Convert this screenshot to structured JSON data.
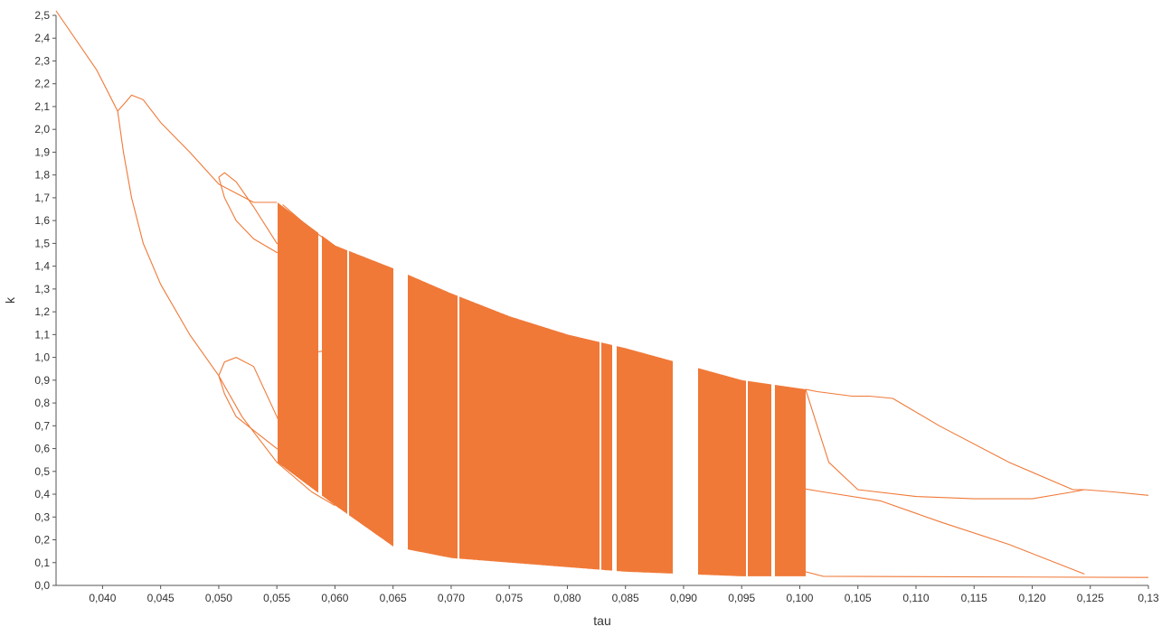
{
  "chart_data": {
    "type": "scatter",
    "xlabel": "tau",
    "ylabel": "k",
    "xlim": [
      0.036,
      0.13
    ],
    "ylim": [
      0.0,
      2.5
    ],
    "grid": false,
    "legend": "none",
    "series_color": "#f07938",
    "x_ticks": [
      {
        "value": 0.04,
        "label": "0,040"
      },
      {
        "value": 0.045,
        "label": "0,045"
      },
      {
        "value": 0.05,
        "label": "0,050"
      },
      {
        "value": 0.055,
        "label": "0,055"
      },
      {
        "value": 0.06,
        "label": "0,060"
      },
      {
        "value": 0.065,
        "label": "0,065"
      },
      {
        "value": 0.07,
        "label": "0,070"
      },
      {
        "value": 0.075,
        "label": "0,075"
      },
      {
        "value": 0.08,
        "label": "0,080"
      },
      {
        "value": 0.085,
        "label": "0,085"
      },
      {
        "value": 0.09,
        "label": "0,090"
      },
      {
        "value": 0.095,
        "label": "0,095"
      },
      {
        "value": 0.1,
        "label": "0,100"
      },
      {
        "value": 0.105,
        "label": "0,105"
      },
      {
        "value": 0.11,
        "label": "0,110"
      },
      {
        "value": 0.115,
        "label": "0,115"
      },
      {
        "value": 0.12,
        "label": "0,120"
      },
      {
        "value": 0.125,
        "label": "0,125"
      },
      {
        "value": 0.13,
        "label": "0,13"
      }
    ],
    "y_ticks": [
      {
        "value": 0.0,
        "label": "0,0"
      },
      {
        "value": 0.1,
        "label": "0,1"
      },
      {
        "value": 0.2,
        "label": "0,2"
      },
      {
        "value": 0.3,
        "label": "0,3"
      },
      {
        "value": 0.4,
        "label": "0,4"
      },
      {
        "value": 0.5,
        "label": "0,5"
      },
      {
        "value": 0.6,
        "label": "0,6"
      },
      {
        "value": 0.7,
        "label": "0,7"
      },
      {
        "value": 0.8,
        "label": "0,8"
      },
      {
        "value": 0.9,
        "label": "0,9"
      },
      {
        "value": 1.0,
        "label": "1,0"
      },
      {
        "value": 1.1,
        "label": "1,1"
      },
      {
        "value": 1.2,
        "label": "1,2"
      },
      {
        "value": 1.3,
        "label": "1,3"
      },
      {
        "value": 1.4,
        "label": "1,4"
      },
      {
        "value": 1.5,
        "label": "1,5"
      },
      {
        "value": 1.6,
        "label": "1,6"
      },
      {
        "value": 1.7,
        "label": "1,7"
      },
      {
        "value": 1.8,
        "label": "1,8"
      },
      {
        "value": 1.9,
        "label": "1,9"
      },
      {
        "value": 2.0,
        "label": "2,0"
      },
      {
        "value": 2.1,
        "label": "2,1"
      },
      {
        "value": 2.2,
        "label": "2,2"
      },
      {
        "value": 2.3,
        "label": "2,3"
      },
      {
        "value": 2.4,
        "label": "2,4"
      },
      {
        "value": 2.5,
        "label": "2,5"
      }
    ],
    "curves": [
      {
        "name": "",
        "points": [
          [
            0.036,
            2.52
          ],
          [
            0.0395,
            2.26
          ],
          [
            0.0413,
            2.08
          ],
          [
            0.042,
            2.12
          ],
          [
            0.0425,
            2.15
          ],
          [
            0.0435,
            2.13
          ],
          [
            0.045,
            2.03
          ],
          [
            0.0475,
            1.9
          ],
          [
            0.05,
            1.76
          ],
          [
            0.053,
            1.68
          ],
          [
            0.055,
            1.68
          ]
        ]
      },
      {
        "name": "",
        "points": [
          [
            0.0413,
            2.08
          ],
          [
            0.0418,
            1.9
          ],
          [
            0.0425,
            1.7
          ],
          [
            0.0435,
            1.5
          ],
          [
            0.045,
            1.32
          ],
          [
            0.0475,
            1.1
          ],
          [
            0.05,
            0.92
          ]
        ]
      },
      {
        "name": "",
        "points": [
          [
            0.05,
            0.92
          ],
          [
            0.052,
            0.74
          ],
          [
            0.055,
            0.54
          ],
          [
            0.058,
            0.41
          ],
          [
            0.06,
            0.35
          ]
        ]
      },
      {
        "name": "",
        "points": [
          [
            0.05,
            1.79
          ],
          [
            0.0505,
            1.81
          ],
          [
            0.0515,
            1.77
          ],
          [
            0.053,
            1.66
          ],
          [
            0.055,
            1.5
          ],
          [
            0.0565,
            1.46
          ]
        ]
      },
      {
        "name": "",
        "points": [
          [
            0.05,
            1.79
          ],
          [
            0.0505,
            1.7
          ],
          [
            0.0515,
            1.6
          ],
          [
            0.053,
            1.52
          ],
          [
            0.055,
            1.46
          ],
          [
            0.0565,
            1.46
          ]
        ]
      },
      {
        "name": "",
        "points": [
          [
            0.05,
            0.92
          ],
          [
            0.0505,
            0.98
          ],
          [
            0.0515,
            1.0
          ],
          [
            0.053,
            0.96
          ],
          [
            0.055,
            0.74
          ],
          [
            0.0565,
            0.58
          ]
        ]
      },
      {
        "name": "",
        "points": [
          [
            0.05,
            0.92
          ],
          [
            0.0505,
            0.84
          ],
          [
            0.0515,
            0.74
          ],
          [
            0.053,
            0.68
          ],
          [
            0.055,
            0.6
          ],
          [
            0.0565,
            0.57
          ]
        ]
      },
      {
        "name": "",
        "points": [
          [
            0.0555,
            1.0
          ],
          [
            0.058,
            1.02
          ],
          [
            0.0605,
            1.04
          ]
        ]
      },
      {
        "name": "",
        "points": [
          [
            0.0555,
            1.67
          ],
          [
            0.058,
            1.56
          ],
          [
            0.0605,
            1.47
          ]
        ]
      },
      {
        "name": "",
        "points": [
          [
            0.1005,
            0.86
          ],
          [
            0.1015,
            0.85
          ],
          [
            0.1045,
            0.83
          ],
          [
            0.106,
            0.83
          ],
          [
            0.108,
            0.82
          ],
          [
            0.112,
            0.7
          ],
          [
            0.118,
            0.54
          ],
          [
            0.1235,
            0.42
          ],
          [
            0.1245,
            0.42
          ]
        ]
      },
      {
        "name": "",
        "points": [
          [
            0.1005,
            0.86
          ],
          [
            0.1015,
            0.7
          ],
          [
            0.1025,
            0.54
          ],
          [
            0.105,
            0.42
          ],
          [
            0.11,
            0.39
          ],
          [
            0.115,
            0.38
          ],
          [
            0.12,
            0.38
          ],
          [
            0.1235,
            0.41
          ],
          [
            0.1245,
            0.42
          ]
        ]
      },
      {
        "name": "",
        "points": [
          [
            0.1245,
            0.42
          ],
          [
            0.127,
            0.41
          ],
          [
            0.13,
            0.395
          ]
        ]
      },
      {
        "name": "",
        "points": [
          [
            0.0985,
            0.44
          ],
          [
            0.102,
            0.41
          ],
          [
            0.107,
            0.37
          ],
          [
            0.112,
            0.28
          ],
          [
            0.118,
            0.18
          ],
          [
            0.124,
            0.06
          ],
          [
            0.1245,
            0.05
          ]
        ]
      },
      {
        "name": "",
        "points": [
          [
            0.1005,
            0.06
          ],
          [
            0.102,
            0.04
          ],
          [
            0.13,
            0.035
          ]
        ]
      }
    ],
    "chaotic_band": {
      "upper": [
        [
          0.055,
          1.68
        ],
        [
          0.06,
          1.49
        ],
        [
          0.065,
          1.39
        ],
        [
          0.07,
          1.28
        ],
        [
          0.075,
          1.18
        ],
        [
          0.08,
          1.1
        ],
        [
          0.085,
          1.04
        ],
        [
          0.09,
          0.97
        ],
        [
          0.095,
          0.9
        ],
        [
          0.1005,
          0.86
        ]
      ],
      "lower": [
        [
          0.055,
          0.54
        ],
        [
          0.06,
          0.35
        ],
        [
          0.065,
          0.17
        ],
        [
          0.07,
          0.12
        ],
        [
          0.075,
          0.1
        ],
        [
          0.08,
          0.08
        ],
        [
          0.085,
          0.06
        ],
        [
          0.09,
          0.05
        ],
        [
          0.095,
          0.04
        ],
        [
          0.1005,
          0.04
        ]
      ],
      "windows": [
        [
          0.065,
          0.0662
        ],
        [
          0.0705,
          0.0707
        ],
        [
          0.0827,
          0.0829
        ],
        [
          0.0838,
          0.0842
        ],
        [
          0.089,
          0.0912
        ],
        [
          0.0953,
          0.0955
        ],
        [
          0.0975,
          0.0978
        ],
        [
          0.0585,
          0.0588
        ],
        [
          0.061,
          0.0612
        ]
      ]
    }
  }
}
